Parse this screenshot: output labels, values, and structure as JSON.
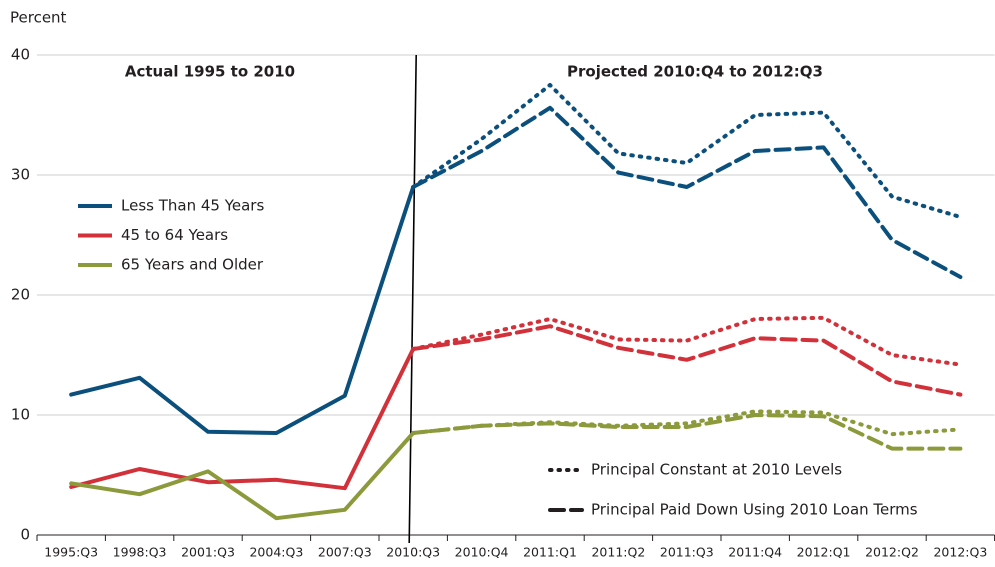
{
  "chart_data": {
    "type": "line",
    "y_label": "Percent",
    "annotations": [
      "Actual 1995 to 2010",
      "Projected 2010:Q4 to 2012:Q3"
    ],
    "categories": [
      "1995:Q3",
      "1998:Q3",
      "2001:Q3",
      "2004:Q3",
      "2007:Q3",
      "2010:Q3",
      "2010:Q4",
      "2011:Q1",
      "2011:Q2",
      "2011:Q3",
      "2011:Q4",
      "2012:Q1",
      "2012:Q2",
      "2012:Q3"
    ],
    "ylim": [
      0,
      40
    ],
    "yticks": [
      0,
      10,
      20,
      30,
      40
    ],
    "grid": true,
    "scenarios": {
      "constant": "Principal Constant at 2010 Levels",
      "paid_down": "Principal Paid Down Using 2010 Loan Terms"
    },
    "series": [
      {
        "name": "Less Than 45 Years",
        "color": "#0b4f7c",
        "values": [
          11.7,
          13.1,
          8.6,
          8.5,
          11.6,
          29,
          null,
          null,
          null,
          null,
          null,
          null,
          null,
          null
        ],
        "constant": [
          null,
          null,
          null,
          null,
          null,
          29,
          33,
          37.5,
          31.8,
          31,
          35,
          35.2,
          28.2,
          26.5
        ],
        "paid_down": [
          null,
          null,
          null,
          null,
          null,
          29,
          32,
          35.6,
          30.2,
          29,
          32,
          32.3,
          24.6,
          21.5
        ]
      },
      {
        "name": "45 to 64 Years",
        "color": "#d2313a",
        "values": [
          4,
          5.5,
          4.4,
          4.6,
          3.9,
          15.5,
          null,
          null,
          null,
          null,
          null,
          null,
          null,
          null
        ],
        "constant": [
          null,
          null,
          null,
          null,
          null,
          15.5,
          16.7,
          18,
          16.3,
          16.2,
          18,
          18.1,
          15,
          14.2
        ],
        "paid_down": [
          null,
          null,
          null,
          null,
          null,
          15.5,
          16.3,
          17.4,
          15.6,
          14.6,
          16.4,
          16.2,
          12.8,
          11.7
        ]
      },
      {
        "name": "65 Years and Older",
        "color": "#8c9a3b",
        "values": [
          4.3,
          3.4,
          5.3,
          1.4,
          2.1,
          8.5,
          null,
          null,
          null,
          null,
          null,
          null,
          null,
          null
        ],
        "constant": [
          null,
          null,
          null,
          null,
          null,
          8.5,
          9.1,
          9.4,
          9.1,
          9.3,
          10.3,
          10.2,
          8.4,
          8.8
        ],
        "paid_down": [
          null,
          null,
          null,
          null,
          null,
          8.5,
          9.1,
          9.3,
          9,
          9,
          10,
          9.9,
          7.2,
          7.2
        ]
      }
    ]
  }
}
